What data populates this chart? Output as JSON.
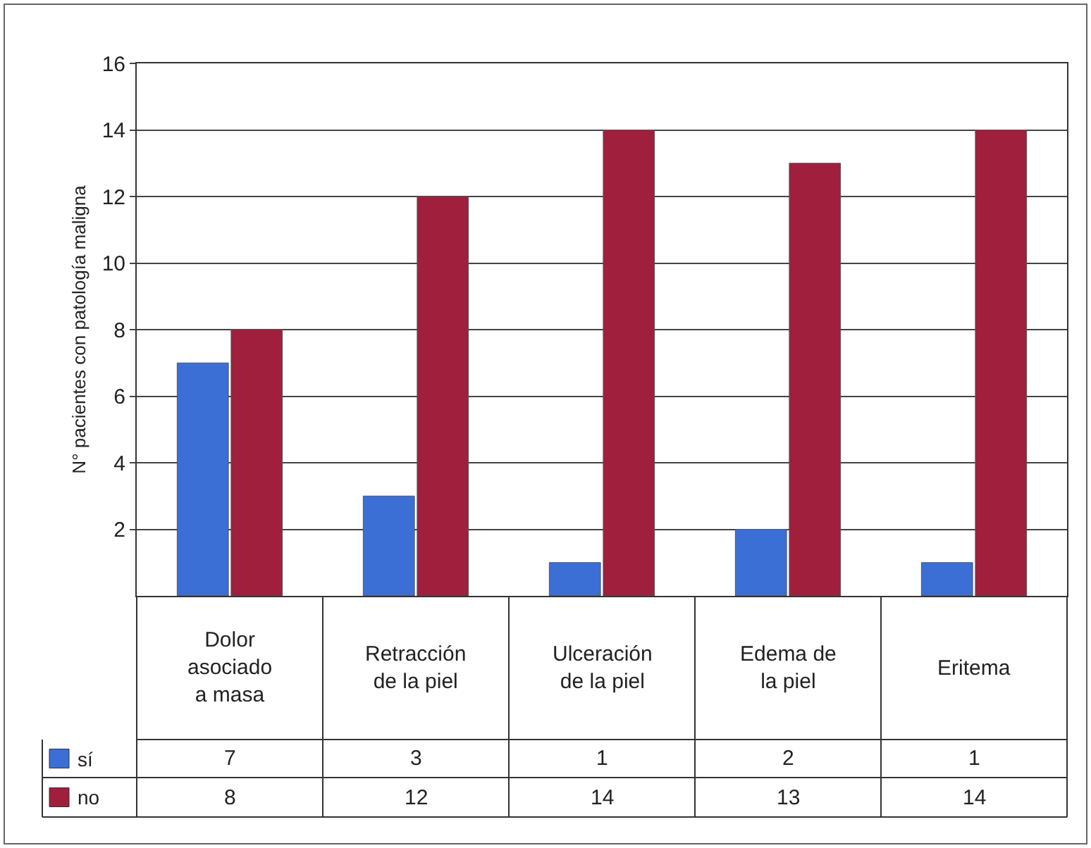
{
  "chart_data": {
    "type": "bar",
    "ylabel": "N° pacientes con patología maligna",
    "categories": [
      "Dolor\nasociado\na masa",
      "Retracción\nde la piel",
      "Ulceración\nde la piel",
      "Edema de\nla piel",
      "Eritema"
    ],
    "series": [
      {
        "name": "sí",
        "color": "#3b6fd6",
        "values": [
          7,
          3,
          1,
          2,
          1
        ]
      },
      {
        "name": "no",
        "color": "#a01f3c",
        "values": [
          8,
          12,
          14,
          13,
          14
        ]
      }
    ],
    "ylim": [
      0,
      16
    ],
    "yticks": [
      2,
      4,
      6,
      8,
      10,
      12,
      14,
      16
    ],
    "grid": "y",
    "data_labels": true,
    "legend": "bottom left"
  }
}
